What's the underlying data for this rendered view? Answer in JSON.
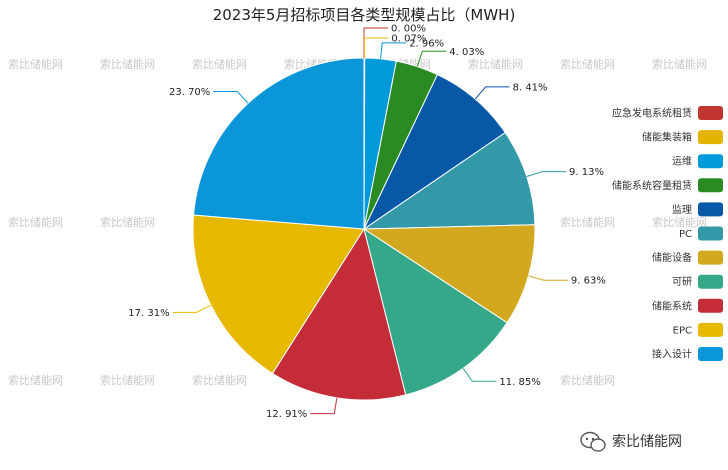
{
  "watermark_text": "索比储能网",
  "brand": {
    "name": "索比储能网"
  },
  "chart_data": {
    "type": "pie",
    "title": "2023年5月招标项目各类型规模占比（MWH)",
    "legend_position": "right",
    "start_angle_deg": 0,
    "direction": "clockwise",
    "slices": [
      {
        "name": "应急发电系统租赁",
        "value": 0.0,
        "label": "0. 00%",
        "color": "#c23531"
      },
      {
        "name": "储能集装箱",
        "value": 0.07,
        "label": "0. 07%",
        "color": "#e5b400"
      },
      {
        "name": "运维",
        "value": 2.96,
        "label": "2. 96%",
        "color": "#0099d9"
      },
      {
        "name": "储能系统容量租赁",
        "value": 4.03,
        "label": "4. 03%",
        "color": "#2a8a23"
      },
      {
        "name": "监理",
        "value": 8.41,
        "label": "8. 41%",
        "color": "#0858a8"
      },
      {
        "name": "PC",
        "value": 9.13,
        "label": "9. 13%",
        "color": "#3399a8"
      },
      {
        "name": "储能设备",
        "value": 9.63,
        "label": "9. 63%",
        "color": "#d2a81e"
      },
      {
        "name": "可研",
        "value": 11.85,
        "label": "11. 85%",
        "color": "#35a88a"
      },
      {
        "name": "储能系统",
        "value": 12.91,
        "label": "12. 91%",
        "color": "#c42d38"
      },
      {
        "name": "EPC",
        "value": 17.31,
        "label": "17. 31%",
        "color": "#e6b800"
      },
      {
        "name": "接入设计",
        "value": 23.7,
        "label": "23. 70%",
        "color": "#0a96d8"
      }
    ]
  }
}
